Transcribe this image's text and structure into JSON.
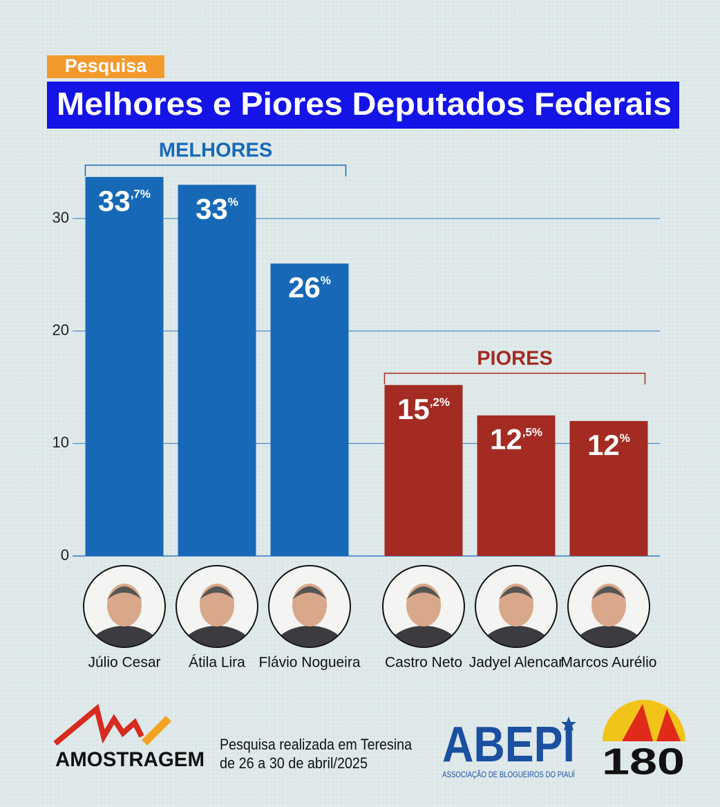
{
  "header": {
    "tag": "Pesquisa"
  },
  "chart_data": {
    "type": "bar",
    "title": "Melhores e Piores Deputados Federais",
    "categories": [
      "Júlio Cesar",
      "Átila Lira",
      "Flávio Nogueira",
      "Castro Neto",
      "Jadyel Alencar",
      "Marcos Aurélio"
    ],
    "series": [
      {
        "name": "MELHORES",
        "color": "#1769b8",
        "values": [
          33.7,
          33,
          26,
          null,
          null,
          null
        ],
        "value_labels": [
          "33,7%",
          "33%",
          "26%",
          null,
          null,
          null
        ]
      },
      {
        "name": "PIORES",
        "color": "#a32b22",
        "values": [
          null,
          null,
          null,
          15.2,
          12.5,
          12
        ],
        "value_labels": [
          null,
          null,
          null,
          "15,2%",
          "12,5%",
          "12%"
        ]
      }
    ],
    "ylim": [
      0,
      34
    ],
    "yticks": [
      0,
      10,
      20,
      30
    ],
    "grid": true
  },
  "footer": {
    "source_logo": "AMOSTRAGEM",
    "note_line1": "Pesquisa realizada em Teresina",
    "note_line2": "de 26 a 30 de abril/2025",
    "partner_logo": "ABEPI",
    "partner_subtitle": "ASSOCIAÇÃO DE BLOGUEIROS DO PIAUÍ",
    "media_logo": "180"
  }
}
